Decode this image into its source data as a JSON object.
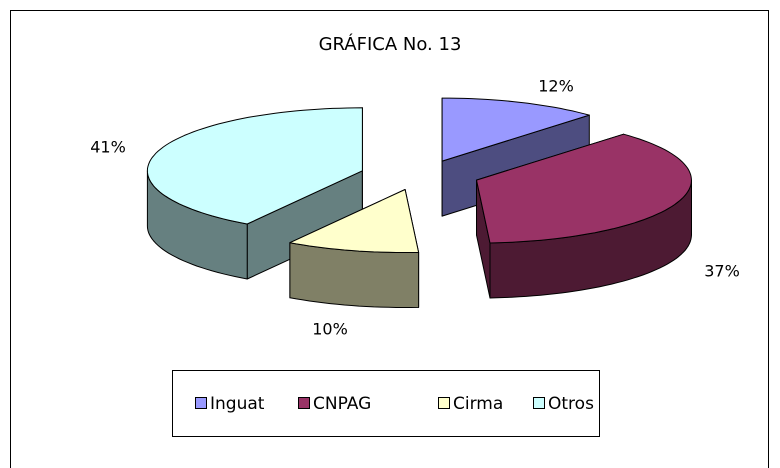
{
  "chart_data": {
    "type": "pie3d",
    "title": "GRÁFICA No. 13",
    "categories": [
      "Inguat",
      "CNPAG",
      "Cirma",
      "Otros"
    ],
    "values": [
      12,
      37,
      10,
      41
    ],
    "value_labels": [
      "12%",
      "37%",
      "10%",
      "41%"
    ],
    "colors": [
      "#9999ff",
      "#993366",
      "#ffffcc",
      "#ccffff"
    ],
    "legend": "bottom"
  }
}
